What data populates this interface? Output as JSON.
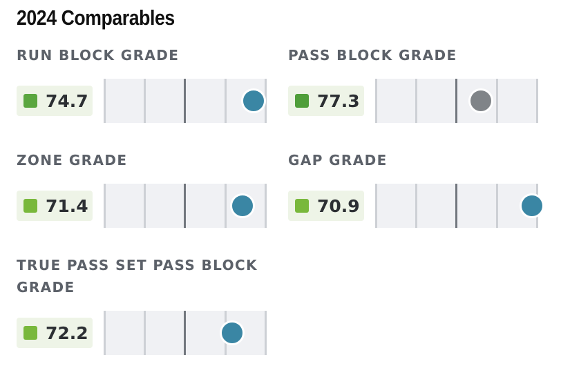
{
  "title": "2024 Comparables",
  "metrics": [
    {
      "label": "RUN BLOCK GRADE",
      "value": "74.7",
      "swatch_color": "#5aa63f",
      "dot_color": "#3a86a4",
      "dot_percentile": 0.92
    },
    {
      "label": "PASS BLOCK GRADE",
      "value": "77.3",
      "swatch_color": "#4f9e3a",
      "dot_color": "#808488",
      "dot_percentile": 0.65
    },
    {
      "label": "ZONE GRADE",
      "value": "71.4",
      "swatch_color": "#79b83c",
      "dot_color": "#3a86a4",
      "dot_percentile": 0.85
    },
    {
      "label": "GAP GRADE",
      "value": "70.9",
      "swatch_color": "#79b83c",
      "dot_color": "#3a86a4",
      "dot_percentile": 0.96
    },
    {
      "label": "TRUE PASS SET PASS BLOCK GRADE",
      "value": "72.2",
      "swatch_color": "#79b83c",
      "dot_color": "#3a86a4",
      "dot_percentile": 0.79
    }
  ]
}
